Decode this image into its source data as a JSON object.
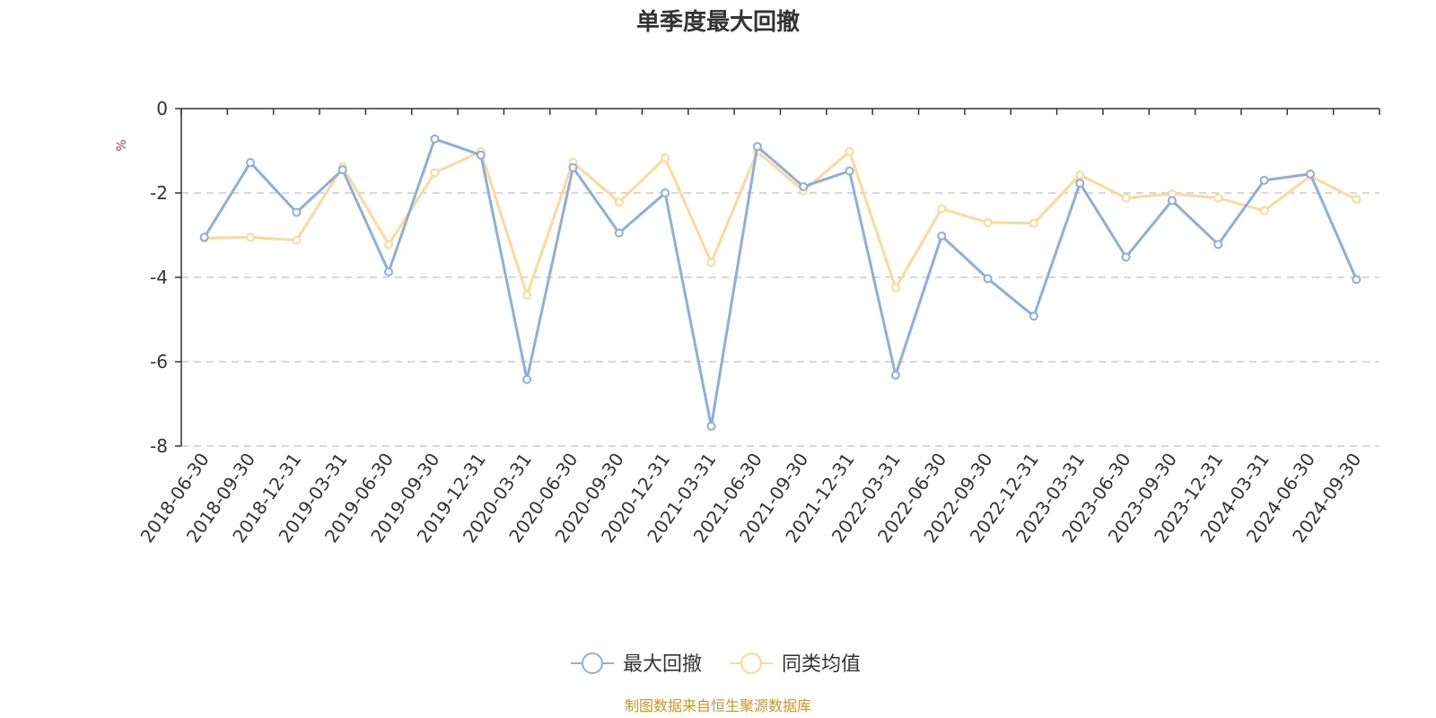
{
  "chart_data": {
    "type": "line",
    "title": "单季度最大回撤",
    "ylabel": "%",
    "xlabel": "",
    "ylim": [
      -8,
      0
    ],
    "yticks": [
      0,
      -2,
      -4,
      -6,
      -8
    ],
    "grid": true,
    "legend_position": "bottom-center",
    "categories": [
      "2018-06-30",
      "2018-09-30",
      "2018-12-31",
      "2019-03-31",
      "2019-06-30",
      "2019-09-30",
      "2019-12-31",
      "2020-03-31",
      "2020-06-30",
      "2020-09-30",
      "2020-12-31",
      "2021-03-31",
      "2021-06-30",
      "2021-09-30",
      "2021-12-31",
      "2022-03-31",
      "2022-06-30",
      "2022-09-30",
      "2022-12-31",
      "2023-03-31",
      "2023-06-30",
      "2023-09-30",
      "2023-12-31",
      "2024-03-31",
      "2024-06-30",
      "2024-09-30"
    ],
    "series": [
      {
        "name": "最大回撤",
        "color": "#8eaedb",
        "values": [
          -3.05,
          -1.28,
          -2.46,
          -1.45,
          -3.87,
          -0.72,
          -1.1,
          -6.42,
          -1.4,
          -2.95,
          -2.0,
          -7.53,
          -0.9,
          -1.85,
          -1.48,
          -6.32,
          -3.02,
          -4.03,
          -4.92,
          -1.77,
          -3.52,
          -2.18,
          -3.22,
          -1.7,
          -1.55,
          -4.05
        ]
      },
      {
        "name": "同类均值",
        "color": "#fdd99a",
        "values": [
          -3.07,
          -3.05,
          -3.12,
          -1.38,
          -3.22,
          -1.52,
          -1.02,
          -4.42,
          -1.27,
          -2.22,
          -1.17,
          -3.65,
          -1.02,
          -1.95,
          -1.02,
          -4.25,
          -2.37,
          -2.7,
          -2.72,
          -1.57,
          -2.12,
          -2.02,
          -2.12,
          -2.42,
          -1.6,
          -2.15
        ]
      }
    ]
  },
  "footer": {
    "source_text": "制图数据来自恒生聚源数据库"
  }
}
